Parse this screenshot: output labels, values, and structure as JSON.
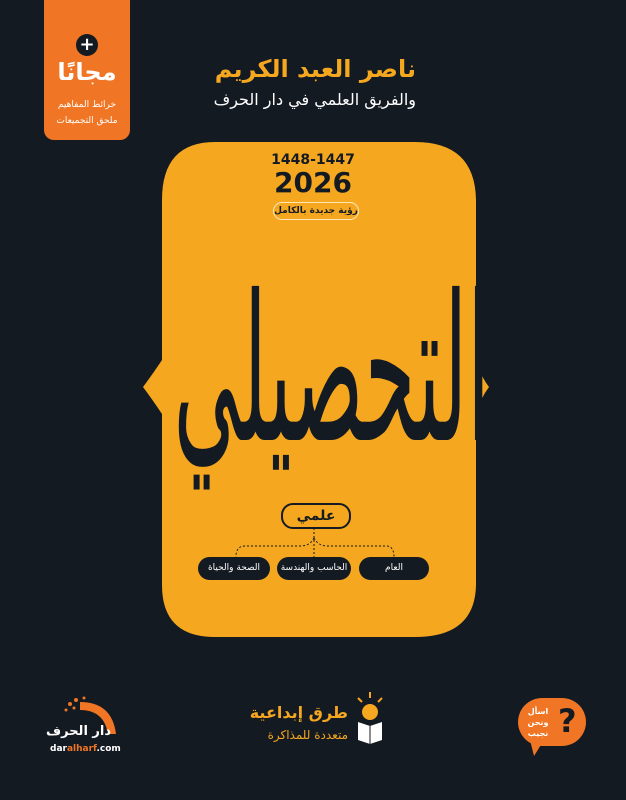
{
  "colors": {
    "background": "#141a22",
    "panel": "#f5a71f",
    "accent": "#f07524",
    "text_dark": "#141a22",
    "text_light": "#ffffff"
  },
  "badge": {
    "icon": "plus-icon",
    "plus": "+",
    "headline": "مجانًا",
    "lines": [
      "خرائط المفاهيم",
      "ملحق التجميعات"
    ]
  },
  "author": "ناصر العبد الكريم",
  "team": "والفريق العلمي في دار الحرف",
  "years": "1448-1447",
  "year": "2026",
  "vision": "رؤية جديدة بالكامل",
  "title": "التحصيلي",
  "track": "علمي",
  "subjects": [
    "العام",
    "الحاسب والهندسة",
    "الصحة والحياة"
  ],
  "feature": {
    "icon": "lightbulb-reader-icon",
    "title": "طرق إبداعية",
    "subtitle": "متعددة للمذاكرة"
  },
  "publisher": {
    "name": "دار الحرف",
    "url_prefix": "dar",
    "url_highlight": "alharf",
    "url_suffix": ".com"
  },
  "ask": {
    "text": "اسأل ونحن نجيب",
    "icon": "question-mark-icon",
    "glyph": "?"
  }
}
